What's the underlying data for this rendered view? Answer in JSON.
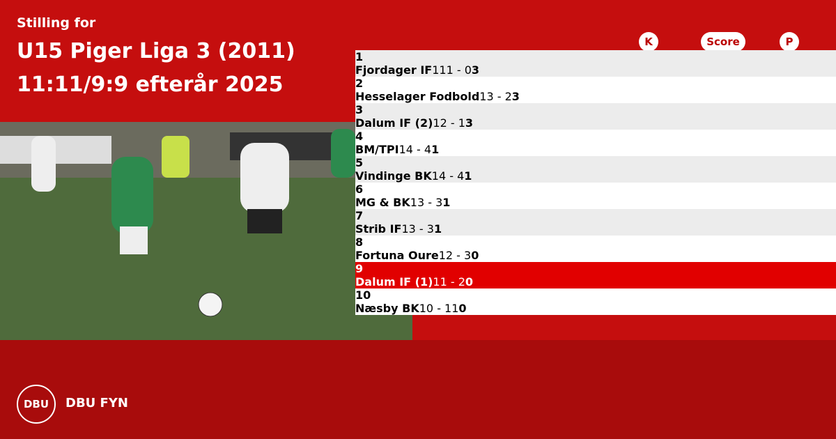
{
  "header": {
    "subtitle": "Stilling for",
    "title": "U15 Piger Liga 3 (2011)",
    "period": "11:11/9:9 efterår 2025"
  },
  "table": {
    "columns": [
      "K",
      "Score",
      "P"
    ],
    "highlight_rank": 9,
    "rows": [
      [
        1,
        "Fjordager IF",
        1,
        "11 - 0",
        3
      ],
      [
        2,
        "Hesselager Fodbold",
        1,
        "3 - 2",
        3
      ],
      [
        3,
        "Dalum IF (2)",
        1,
        "2 - 1",
        3
      ],
      [
        4,
        "BM/TPI",
        1,
        "4 - 4",
        1
      ],
      [
        5,
        "Vindinge BK",
        1,
        "4 - 4",
        1
      ],
      [
        6,
        "MG & BK",
        1,
        "3 - 3",
        1
      ],
      [
        7,
        "Strib IF",
        1,
        "3 - 3",
        1
      ],
      [
        8,
        "Fortuna Oure",
        1,
        "2 - 3",
        0
      ],
      [
        9,
        "Dalum IF (1)",
        1,
        "1 - 2",
        0
      ],
      [
        10,
        "Næsby BK",
        1,
        "0 - 11",
        0
      ]
    ]
  },
  "footer": {
    "logo": "DBU",
    "brand": "DBU FYN"
  }
}
